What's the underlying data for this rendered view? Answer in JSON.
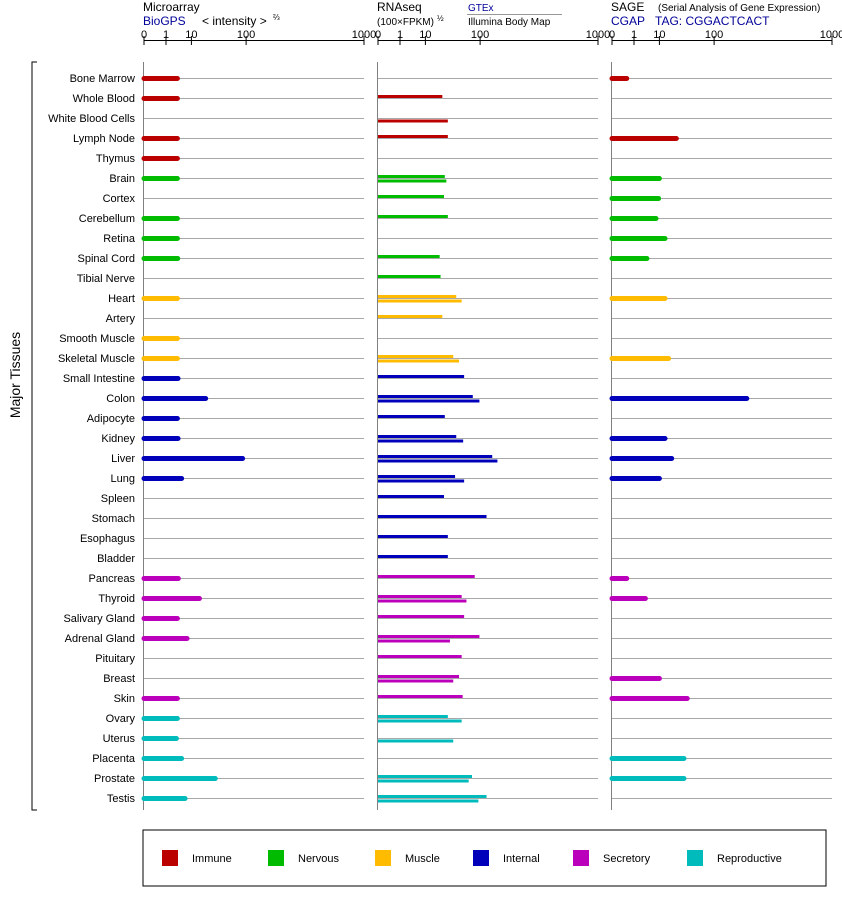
{
  "panels": {
    "microarray": {
      "title": "Microarray",
      "source": "BioGPS",
      "scale_label": "< intensity >",
      "scale_exp": "⅔",
      "ticks": [
        "0",
        "1",
        "10",
        "100",
        "1000"
      ]
    },
    "rnaseq": {
      "title": "RNAseq",
      "scale_label": "(100×FPKM)",
      "scale_exp": "½",
      "source_1": "GTEx",
      "source_2": "Illumina Body Map",
      "ticks": [
        "0",
        "1",
        "10",
        "100",
        "1000"
      ]
    },
    "sage": {
      "title": "SAGE",
      "subtitle": "(Serial Analysis of Gene Expression)",
      "source": "CGAP",
      "tag": "TAG: CGGACTCACT",
      "ticks": [
        "0",
        "1",
        "10",
        "100",
        "1000"
      ]
    }
  },
  "y_axis_label": "Major Tissues",
  "colors": {
    "immune": "#bb0000",
    "nervous": "#00bb00",
    "muscle": "#ffbb00",
    "internal": "#0000bb",
    "secretory": "#bb00bb",
    "reproductive": "#00bbbb"
  },
  "legend": [
    {
      "key": "immune",
      "label": "Immune"
    },
    {
      "key": "nervous",
      "label": "Nervous"
    },
    {
      "key": "muscle",
      "label": "Muscle"
    },
    {
      "key": "internal",
      "label": "Internal"
    },
    {
      "key": "secretory",
      "label": "Secretory"
    },
    {
      "key": "reproductive",
      "label": "Reproductive"
    }
  ],
  "chart_data": {
    "type": "bar",
    "orientation": "horizontal",
    "x_scale": "power (tick labels 0, 1, 10, 100, 1000)",
    "x_range": [
      0,
      1000
    ],
    "categories": [
      "Bone Marrow",
      "Whole Blood",
      "White Blood Cells",
      "Lymph Node",
      "Thymus",
      "Brain",
      "Cortex",
      "Cerebellum",
      "Retina",
      "Spinal Cord",
      "Tibial Nerve",
      "Heart",
      "Artery",
      "Smooth Muscle",
      "Skeletal Muscle",
      "Small Intestine",
      "Colon",
      "Adipocyte",
      "Kidney",
      "Liver",
      "Lung",
      "Spleen",
      "Stomach",
      "Esophagus",
      "Bladder",
      "Pancreas",
      "Thyroid",
      "Salivary Gland",
      "Adrenal Gland",
      "Pituitary",
      "Breast",
      "Skin",
      "Ovary",
      "Uterus",
      "Placenta",
      "Prostate",
      "Testis"
    ],
    "groups": [
      "immune",
      "immune",
      "immune",
      "immune",
      "immune",
      "nervous",
      "nervous",
      "nervous",
      "nervous",
      "nervous",
      "nervous",
      "muscle",
      "muscle",
      "muscle",
      "muscle",
      "internal",
      "internal",
      "internal",
      "internal",
      "internal",
      "internal",
      "internal",
      "internal",
      "internal",
      "internal",
      "secretory",
      "secretory",
      "secretory",
      "secretory",
      "secretory",
      "secretory",
      "secretory",
      "reproductive",
      "reproductive",
      "reproductive",
      "reproductive",
      "reproductive"
    ],
    "series": [
      {
        "panel": "microarray",
        "values": [
          3.5,
          3.5,
          null,
          3.5,
          3.5,
          3.5,
          null,
          3.5,
          3.5,
          3.6,
          null,
          3.5,
          null,
          3.5,
          3.5,
          3.7,
          22,
          3.5,
          3.7,
          90,
          5,
          null,
          null,
          null,
          null,
          3.8,
          16,
          3.5,
          7.5,
          null,
          null,
          3.5,
          3.5,
          3.2,
          5,
          34,
          6.5
        ]
      },
      {
        "panel": "rnaseq",
        "source": "GTEx",
        "values": [
          null,
          25,
          null,
          32,
          null,
          28,
          27,
          32,
          null,
          22,
          23,
          45,
          25,
          null,
          40,
          60,
          80,
          28,
          45,
          140,
          43,
          27,
          120,
          32,
          32,
          85,
          55,
          60,
          98,
          55,
          50,
          57,
          32,
          null,
          null,
          78,
          120
        ]
      },
      {
        "panel": "rnaseq",
        "source": "Illumina Body Map",
        "values": [
          null,
          null,
          32,
          null,
          null,
          30,
          null,
          null,
          null,
          null,
          null,
          55,
          null,
          null,
          50,
          null,
          98,
          null,
          58,
          160,
          60,
          null,
          null,
          null,
          null,
          null,
          65,
          null,
          35,
          null,
          40,
          null,
          55,
          40,
          null,
          70,
          95
        ]
      },
      {
        "panel": "sage",
        "values": [
          0.3,
          null,
          null,
          25,
          null,
          10,
          9.5,
          8,
          14,
          4,
          null,
          14,
          null,
          null,
          17,
          null,
          230,
          null,
          14,
          20,
          10,
          null,
          null,
          null,
          null,
          0.3,
          3.5,
          null,
          null,
          null,
          10,
          40,
          null,
          null,
          35,
          35,
          null
        ]
      }
    ]
  }
}
